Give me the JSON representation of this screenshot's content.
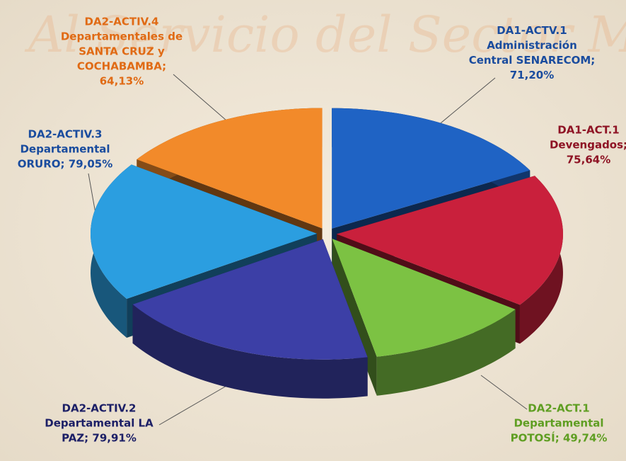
{
  "chart_data": {
    "type": "pie",
    "watermark": "Al Servicio del Sector Minero",
    "categories": [
      "DA1-ACTV.1 Administración Central SENARECOM;",
      "DA1-ACT.1 Devengados;",
      "DA2-ACT.1 Departamental POTOSÍ;",
      "DA2-ACTIV.2 Departamental LA PAZ;",
      "DA2-ACTIV.3 Departamental ORURO;",
      "DA2-ACTIV.4 Departamentales de SANTA CRUZ y COCHABAMBA;"
    ],
    "values": [
      71.2,
      75.64,
      49.74,
      79.91,
      79.05,
      64.13
    ],
    "value_labels": [
      "71,20%",
      "75,64%",
      "49,74%",
      "79,91%",
      "79,05%",
      "64,13%"
    ],
    "colors": [
      "#1f63c4",
      "#c9203c",
      "#7cc243",
      "#3c3fa6",
      "#2b9ee0",
      "#f28a2a"
    ],
    "label_colors": [
      "#1a4c9e",
      "#8e1324",
      "#5f9e22",
      "#1c1f66",
      "#1a4c9e",
      "#e06a14"
    ]
  }
}
